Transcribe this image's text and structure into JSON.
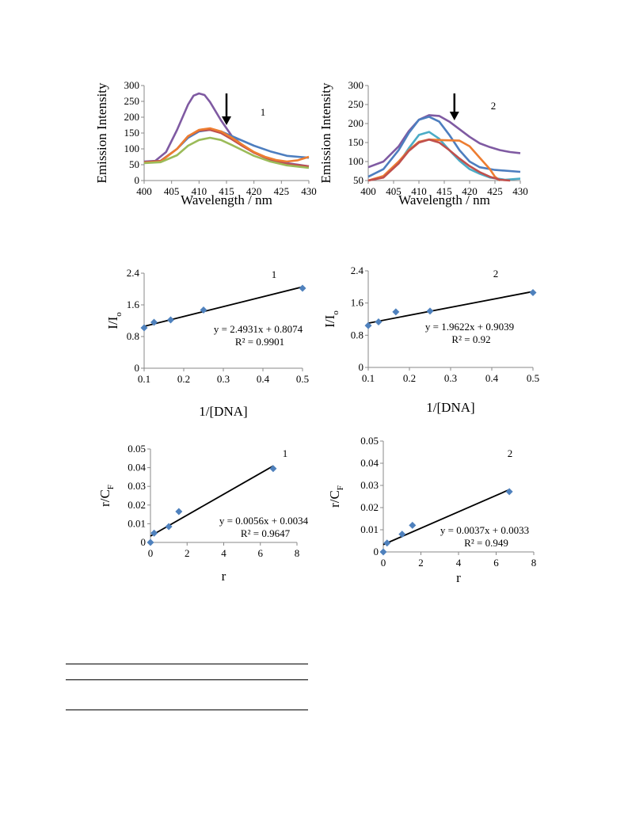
{
  "charts": [
    {
      "type": "line",
      "panel_label": "1",
      "xlabel": "Wavelength / nm",
      "ylabel": "Emission Intensity",
      "xlim": [
        400,
        430
      ],
      "ylim": [
        0,
        300
      ],
      "xticks": [
        400,
        405,
        410,
        415,
        420,
        425,
        430
      ],
      "yticks": [
        0,
        50,
        100,
        150,
        200,
        250,
        300
      ],
      "arrow_at_x": 415,
      "series": [
        {
          "color": "#7f5aa2",
          "points": [
            [
              400,
              60
            ],
            [
              402,
              62
            ],
            [
              404,
              90
            ],
            [
              406,
              160
            ],
            [
              408,
              240
            ],
            [
              409,
              268
            ],
            [
              410,
              275
            ],
            [
              411,
              270
            ],
            [
              412,
              248
            ],
            [
              414,
              190
            ],
            [
              416,
              140
            ],
            [
              418,
              110
            ],
            [
              420,
              88
            ],
            [
              423,
              68
            ],
            [
              426,
              55
            ],
            [
              430,
              45
            ]
          ]
        },
        {
          "color": "#4d7ebf",
          "points": [
            [
              400,
              58
            ],
            [
              403,
              62
            ],
            [
              406,
              100
            ],
            [
              408,
              135
            ],
            [
              410,
              155
            ],
            [
              412,
              160
            ],
            [
              414,
              155
            ],
            [
              416,
              140
            ],
            [
              418,
              125
            ],
            [
              420,
              110
            ],
            [
              423,
              92
            ],
            [
              426,
              78
            ],
            [
              430,
              72
            ]
          ]
        },
        {
          "color": "#c0504d",
          "points": [
            [
              400,
              58
            ],
            [
              403,
              62
            ],
            [
              406,
              100
            ],
            [
              408,
              140
            ],
            [
              410,
              158
            ],
            [
              412,
              160
            ],
            [
              414,
              150
            ],
            [
              416,
              130
            ],
            [
              418,
              108
            ],
            [
              420,
              88
            ],
            [
              423,
              65
            ],
            [
              426,
              52
            ],
            [
              430,
              45
            ]
          ]
        },
        {
          "color": "#ed7d31",
          "points": [
            [
              400,
              56
            ],
            [
              403,
              60
            ],
            [
              406,
              100
            ],
            [
              408,
              140
            ],
            [
              410,
              160
            ],
            [
              412,
              165
            ],
            [
              414,
              155
            ],
            [
              416,
              135
            ],
            [
              418,
              112
            ],
            [
              420,
              90
            ],
            [
              422,
              75
            ],
            [
              424,
              65
            ],
            [
              426,
              60
            ],
            [
              428,
              64
            ],
            [
              430,
              75
            ]
          ]
        },
        {
          "color": "#9bbb59",
          "points": [
            [
              400,
              55
            ],
            [
              403,
              58
            ],
            [
              406,
              80
            ],
            [
              408,
              110
            ],
            [
              410,
              128
            ],
            [
              412,
              135
            ],
            [
              414,
              128
            ],
            [
              416,
              112
            ],
            [
              418,
              95
            ],
            [
              420,
              78
            ],
            [
              423,
              60
            ],
            [
              426,
              48
            ],
            [
              430,
              40
            ]
          ]
        }
      ]
    },
    {
      "type": "line",
      "panel_label": "2",
      "xlabel": "Wavelength / nm",
      "ylabel": "Emission Intensity",
      "xlim": [
        400,
        430
      ],
      "ylim": [
        50,
        300
      ],
      "xticks": [
        400,
        405,
        410,
        415,
        420,
        425,
        430
      ],
      "yticks": [
        50,
        100,
        150,
        200,
        250,
        300
      ],
      "arrow_at_x": 417,
      "series": [
        {
          "color": "#7f5aa2",
          "points": [
            [
              400,
              85
            ],
            [
              403,
              100
            ],
            [
              406,
              140
            ],
            [
              408,
              180
            ],
            [
              410,
              210
            ],
            [
              412,
              222
            ],
            [
              414,
              220
            ],
            [
              416,
              205
            ],
            [
              418,
              185
            ],
            [
              420,
              165
            ],
            [
              422,
              148
            ],
            [
              424,
              138
            ],
            [
              426,
              130
            ],
            [
              428,
              125
            ],
            [
              430,
              122
            ]
          ]
        },
        {
          "color": "#4d7ebf",
          "points": [
            [
              400,
              60
            ],
            [
              403,
              80
            ],
            [
              406,
              130
            ],
            [
              408,
              175
            ],
            [
              410,
              210
            ],
            [
              412,
              218
            ],
            [
              414,
              205
            ],
            [
              416,
              170
            ],
            [
              418,
              130
            ],
            [
              420,
              100
            ],
            [
              422,
              85
            ],
            [
              425,
              78
            ],
            [
              430,
              73
            ]
          ]
        },
        {
          "color": "#4bacc6",
          "points": [
            [
              400,
              50
            ],
            [
              403,
              60
            ],
            [
              406,
              95
            ],
            [
              408,
              135
            ],
            [
              410,
              170
            ],
            [
              412,
              178
            ],
            [
              414,
              160
            ],
            [
              416,
              130
            ],
            [
              418,
              102
            ],
            [
              420,
              80
            ],
            [
              422,
              68
            ],
            [
              424,
              58
            ],
            [
              427,
              52
            ],
            [
              430,
              55
            ]
          ]
        },
        {
          "color": "#ed7d31",
          "points": [
            [
              400,
              50
            ],
            [
              403,
              62
            ],
            [
              406,
              100
            ],
            [
              408,
              130
            ],
            [
              410,
              152
            ],
            [
              412,
              158
            ],
            [
              415,
              156
            ],
            [
              418,
              155
            ],
            [
              420,
              140
            ],
            [
              422,
              110
            ],
            [
              424,
              80
            ],
            [
              425,
              60
            ],
            [
              426,
              50
            ]
          ]
        },
        {
          "color": "#c0504d",
          "points": [
            [
              400,
              45
            ],
            [
              403,
              58
            ],
            [
              406,
              95
            ],
            [
              408,
              128
            ],
            [
              410,
              150
            ],
            [
              412,
              158
            ],
            [
              414,
              150
            ],
            [
              416,
              130
            ],
            [
              418,
              108
            ],
            [
              420,
              88
            ],
            [
              422,
              72
            ],
            [
              424,
              60
            ],
            [
              426,
              52
            ],
            [
              428,
              48
            ]
          ]
        }
      ]
    },
    {
      "type": "scatter",
      "panel_label": "1",
      "xlabel": "1/[DNA]",
      "ylabel_main": "I/I",
      "ylabel_sub": "o",
      "xlim": [
        0.1,
        0.5
      ],
      "ylim": [
        0,
        2.4
      ],
      "xticks": [
        "0.1",
        "0.2",
        "0.3",
        "0.4",
        "0.5"
      ],
      "yticks": [
        "0",
        "0.8",
        "1.6",
        "2.4"
      ],
      "equation": "y = 2.4931x + 0.8074",
      "r_squared": "R² = 0.9901",
      "trend": {
        "slope": 2.4931,
        "intercept": 0.8074
      },
      "points": [
        [
          0.1,
          1.02
        ],
        [
          0.125,
          1.16
        ],
        [
          0.167,
          1.22
        ],
        [
          0.25,
          1.47
        ],
        [
          0.5,
          2.02
        ]
      ]
    },
    {
      "type": "scatter",
      "panel_label": "2",
      "xlabel": "1/[DNA]",
      "ylabel_main": "I/I",
      "ylabel_sub": "o",
      "xlim": [
        0.1,
        0.5
      ],
      "ylim": [
        0,
        2.4
      ],
      "xticks": [
        "0.1",
        "0.2",
        "0.3",
        "0.4",
        "0.5"
      ],
      "yticks": [
        "0",
        "0.8",
        "1.6",
        "2.4"
      ],
      "equation": "y = 1.9622x + 0.9039",
      "r_squared": "R² = 0.92",
      "trend": {
        "slope": 1.9622,
        "intercept": 0.9039
      },
      "points": [
        [
          0.1,
          1.04
        ],
        [
          0.125,
          1.13
        ],
        [
          0.167,
          1.38
        ],
        [
          0.25,
          1.4
        ],
        [
          0.5,
          1.86
        ]
      ]
    },
    {
      "type": "scatter",
      "panel_label": "1",
      "xlabel": "r",
      "ylabel_main": "r/C",
      "ylabel_sub": "F",
      "xlim": [
        0,
        8
      ],
      "ylim": [
        0,
        0.05
      ],
      "xticks": [
        "0",
        "2",
        "4",
        "6",
        "8"
      ],
      "yticks": [
        "0",
        "0.01",
        "0.02",
        "0.03",
        "0.04",
        "0.05"
      ],
      "equation": "y = 0.0056x + 0.0034",
      "r_squared": "R² = 0.9647",
      "trend": {
        "slope": 0.0056,
        "intercept": 0.0034
      },
      "points": [
        [
          0,
          0
        ],
        [
          0.2,
          0.005
        ],
        [
          1,
          0.0085
        ],
        [
          1.55,
          0.0165
        ],
        [
          6.7,
          0.0395
        ]
      ]
    },
    {
      "type": "scatter",
      "panel_label": "2",
      "xlabel": "r",
      "ylabel_main": "r/C",
      "ylabel_sub": "F",
      "xlim": [
        0,
        8
      ],
      "ylim": [
        0,
        0.05
      ],
      "xticks": [
        "0",
        "2",
        "4",
        "6",
        "8"
      ],
      "yticks": [
        "0",
        "0.01",
        "0.02",
        "0.03",
        "0.04",
        "0.05"
      ],
      "equation": "y = 0.0037x + 0.0033",
      "r_squared": "R² = 0.949",
      "trend": {
        "slope": 0.0037,
        "intercept": 0.0033
      },
      "points": [
        [
          0,
          0
        ],
        [
          0.2,
          0.004
        ],
        [
          1,
          0.008
        ],
        [
          1.55,
          0.012
        ],
        [
          6.7,
          0.0272
        ]
      ]
    }
  ]
}
